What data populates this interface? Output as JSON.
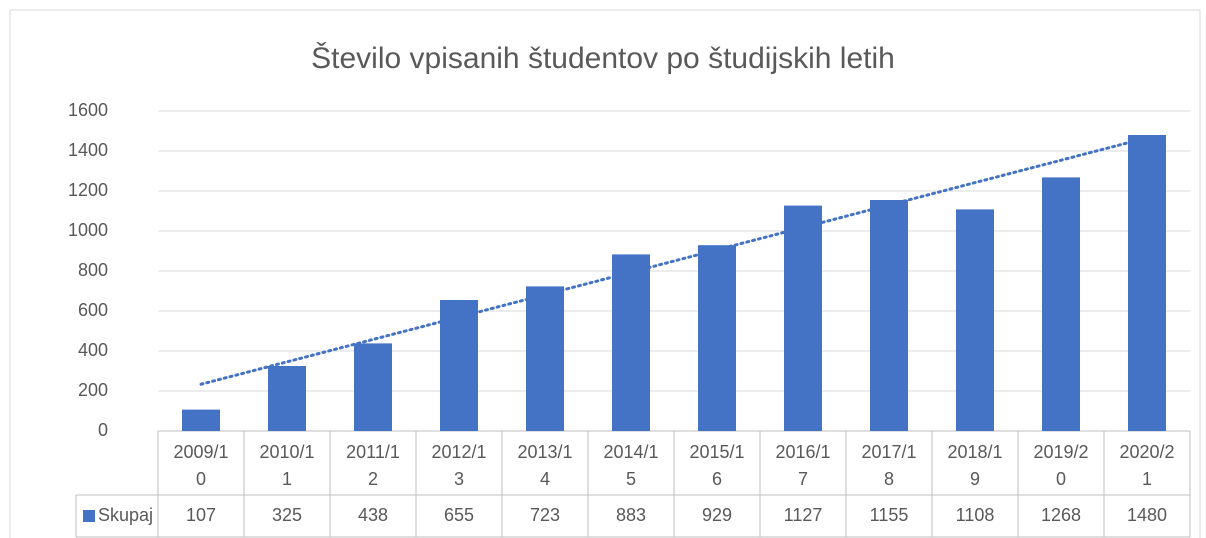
{
  "chart_data": {
    "type": "bar",
    "title": "Število vpisanih študentov po študijskih letih",
    "categories": [
      "2009/10",
      "2010/11",
      "2011/12",
      "2012/13",
      "2013/14",
      "2014/15",
      "2015/16",
      "2016/17",
      "2017/18",
      "2018/19",
      "2019/20",
      "2020/21"
    ],
    "series": [
      {
        "name": "Skupaj",
        "color": "#4472c4",
        "values": [
          107,
          325,
          438,
          655,
          723,
          883,
          929,
          1127,
          1155,
          1108,
          1268,
          1480
        ]
      }
    ],
    "ylim": [
      0,
      1600
    ],
    "yticks": [
      0,
      200,
      400,
      600,
      800,
      1000,
      1200,
      1400,
      1600
    ],
    "grid": true,
    "trendline": "linear",
    "data_table": true
  }
}
